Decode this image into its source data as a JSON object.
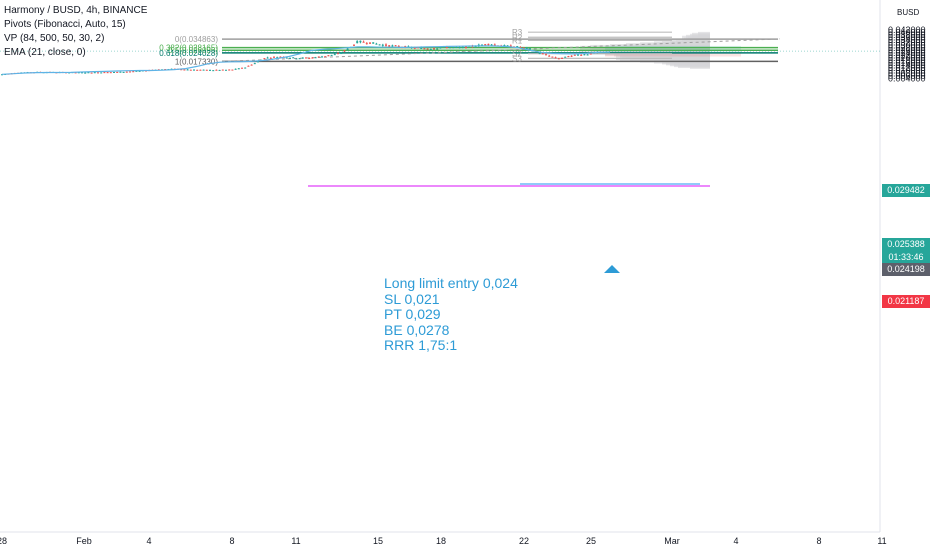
{
  "legend": {
    "symbol": "Harmony / BUSD, 4h, BINANCE",
    "pivots": "Pivots (Fibonacci, Auto, 15)",
    "vp": "VP (84, 500, 50, 30, 2)",
    "ema": "EMA (21, close, 0)"
  },
  "currency": "BUSD",
  "note": {
    "line1": "Long limit entry 0,024",
    "line2": "SL 0,021",
    "line3": "PT 0,029",
    "line4": "BE 0,0278",
    "line5": "RRR 1,75:1"
  },
  "badges": [
    {
      "label": "0.029482",
      "color": "#26a69a"
    },
    {
      "label": "0.025388",
      "color": "#26a69a"
    },
    {
      "label": "01:33:46",
      "color": "#26a69a"
    },
    {
      "label": "0.024198",
      "color": "#5d606b"
    },
    {
      "label": "0.021187",
      "color": "#f23645"
    }
  ],
  "colors": {
    "up": "#26a69a",
    "down": "#ef5350",
    "ema": "#5fb3e6",
    "fib_green": "#4caf50",
    "fib_teal": "#00796b",
    "fib_gray": "#9e9e9e",
    "pivot": "#bdbdbd",
    "magenta": "#e040fb",
    "vp": "#d6d6d9"
  },
  "chart_data": {
    "type": "line",
    "title": "Harmony / BUSD, 4h, BINANCE",
    "xlabel": "",
    "ylabel": "",
    "ylim": [
      0.004,
      0.0424
    ],
    "y_ticks": [
      "0.042000",
      "0.040000",
      "0.038000",
      "0.036000",
      "0.034000",
      "0.032000",
      "0.030000",
      "0.028000",
      "0.026000",
      "0.024000",
      "0.022000",
      "0.020000",
      "0.018000",
      "0.016000",
      "0.014000",
      "0.012000",
      "0.010000",
      "0.008000",
      "0.006000",
      "0.004000"
    ],
    "x_ticks": [
      "28",
      "Feb",
      "4",
      "8",
      "11",
      "15",
      "18",
      "22",
      "25",
      "Mar",
      "4",
      "8",
      "11"
    ],
    "grid": false,
    "series": [
      {
        "name": "EMA (21, close, 0)",
        "values": [
          0.0072,
          0.0077,
          0.0082,
          0.0085,
          0.0086,
          0.0086,
          0.0087,
          0.009,
          0.0093,
          0.0095,
          0.0098,
          0.01,
          0.0102,
          0.0102,
          0.0104,
          0.0109,
          0.0117,
          0.0134,
          0.0155,
          0.0167,
          0.017,
          0.0172,
          0.0176,
          0.0183,
          0.0196,
          0.0212,
          0.0234,
          0.026,
          0.0268,
          0.0273,
          0.028,
          0.0287,
          0.0287,
          0.0285,
          0.0285,
          0.0283,
          0.0285,
          0.0287,
          0.0289,
          0.0291,
          0.0293,
          0.0294,
          0.0296,
          0.0294,
          0.029,
          0.028,
          0.0262,
          0.0245,
          0.0236,
          0.0233,
          0.0232,
          0.0237,
          0.0245,
          0.0246
        ]
      }
    ],
    "fib_levels": [
      {
        "label": "0(0.034863)",
        "value": 0.034863
      },
      {
        "label": "0.382(0.028165)",
        "value": 0.028165
      },
      {
        "label": "0.5(0.026096)",
        "value": 0.026096
      },
      {
        "label": "0.618(0.024028)",
        "value": 0.024028
      },
      {
        "label": "1(0.017330)",
        "value": 0.01733
      }
    ],
    "pivots": [
      {
        "label": "R3",
        "value": 0.0403
      },
      {
        "label": "R2",
        "value": 0.0363
      },
      {
        "label": "R1",
        "value": 0.0338
      },
      {
        "label": "S2",
        "value": 0.0234
      },
      {
        "label": "S3",
        "value": 0.0197
      }
    ],
    "position": {
      "entry": 0.024198,
      "target": 0.029482,
      "stop": 0.021187
    }
  }
}
